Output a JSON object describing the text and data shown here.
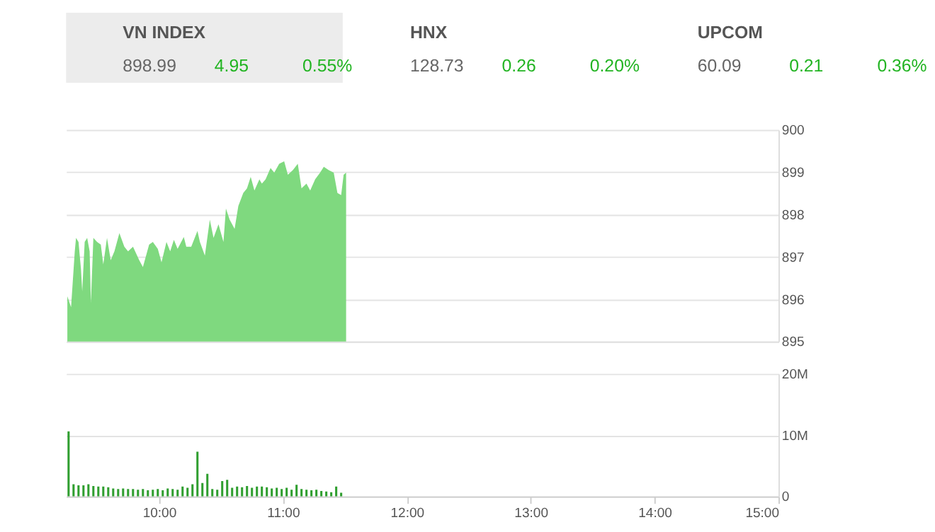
{
  "chart_data": [
    {
      "type": "other",
      "title": "VN INDEX",
      "annotations": [
        "898.99",
        "4.95",
        "0.55%"
      ]
    },
    {
      "type": "other",
      "title": "HNX",
      "annotations": [
        "128.73",
        "0.26",
        "0.20%"
      ]
    },
    {
      "type": "other",
      "title": "UPCOM",
      "annotations": [
        "60.09",
        "0.21",
        "0.36%"
      ]
    },
    {
      "type": "area",
      "x": [
        9.26,
        9.29,
        9.32,
        9.33,
        9.35,
        9.37,
        9.38,
        9.4,
        9.42,
        9.44,
        9.45,
        9.47,
        9.5,
        9.53,
        9.55,
        9.58,
        9.61,
        9.64,
        9.68,
        9.72,
        9.75,
        9.79,
        9.84,
        9.87,
        9.92,
        9.95,
        9.99,
        10.02,
        10.06,
        10.09,
        10.12,
        10.15,
        10.2,
        10.22,
        10.26,
        10.31,
        10.33,
        10.37,
        10.41,
        10.44,
        10.48,
        10.52,
        10.54,
        10.57,
        10.61,
        10.64,
        10.68,
        10.71,
        10.74,
        10.77,
        10.81,
        10.83,
        10.86,
        10.9,
        10.93,
        10.97,
        11.01,
        11.04,
        11.08,
        11.12,
        11.15,
        11.19,
        11.22,
        11.26,
        11.3,
        11.33,
        11.37,
        11.41,
        11.44,
        11.47,
        11.49,
        11.51
      ],
      "series": [
        {
          "color": "#7fd97f",
          "values": [
            896.07,
            895.81,
            897.13,
            897.45,
            897.35,
            896.71,
            896.18,
            897.35,
            897.45,
            897.13,
            895.91,
            897.45,
            897.35,
            897.29,
            896.82,
            897.45,
            896.92,
            897.13,
            897.56,
            897.24,
            897.13,
            897.24,
            896.92,
            896.76,
            897.29,
            897.35,
            897.19,
            896.87,
            897.35,
            897.13,
            897.4,
            897.19,
            897.47,
            897.24,
            897.24,
            897.61,
            897.35,
            897.03,
            897.88,
            897.45,
            897.77,
            897.35,
            898.14,
            897.88,
            897.66,
            898.2,
            898.51,
            898.62,
            898.89,
            898.57,
            898.83,
            898.73,
            898.83,
            899.1,
            898.99,
            899.2,
            899.26,
            898.94,
            899.05,
            899.2,
            898.62,
            898.73,
            898.57,
            898.83,
            898.99,
            899.13,
            899.05,
            898.99,
            898.51,
            898.46,
            898.94,
            898.99
          ]
        }
      ],
      "xlim": [
        9.25,
        15
      ],
      "ylim": [
        895,
        900
      ],
      "yticks": [
        895,
        896,
        897,
        898,
        899,
        900
      ],
      "grid": "y",
      "tick_labels": "y"
    },
    {
      "type": "bar",
      "x": [
        9.27,
        9.31,
        9.35,
        9.39,
        9.43,
        9.47,
        9.51,
        9.55,
        9.59,
        9.63,
        9.67,
        9.71,
        9.75,
        9.79,
        9.83,
        9.87,
        9.91,
        9.95,
        9.99,
        10.03,
        10.07,
        10.11,
        10.15,
        10.19,
        10.23,
        10.27,
        10.31,
        10.35,
        10.39,
        10.43,
        10.47,
        10.51,
        10.55,
        10.59,
        10.63,
        10.67,
        10.71,
        10.75,
        10.79,
        10.83,
        10.87,
        10.91,
        10.95,
        10.99,
        11.03,
        11.07,
        11.11,
        11.15,
        11.19,
        11.23,
        11.27,
        11.31,
        11.35,
        11.39,
        11.43,
        11.47
      ],
      "series": [
        {
          "color": "#2f9e2f",
          "values": [
            10.6,
            2.0,
            1.8,
            1.8,
            2.0,
            1.7,
            1.6,
            1.6,
            1.5,
            1.3,
            1.2,
            1.3,
            1.2,
            1.2,
            1.1,
            1.2,
            1.0,
            1.1,
            1.2,
            1.0,
            1.3,
            1.2,
            1.1,
            1.6,
            1.4,
            2.0,
            7.3,
            2.2,
            3.7,
            1.2,
            1.1,
            2.5,
            2.7,
            1.4,
            1.6,
            1.5,
            1.7,
            1.4,
            1.6,
            1.6,
            1.5,
            1.3,
            1.4,
            1.2,
            1.4,
            1.1,
            1.9,
            1.2,
            1.1,
            1.0,
            1.1,
            0.9,
            0.8,
            0.7,
            1.6,
            0.6
          ]
        }
      ],
      "xlim": [
        9.25,
        15
      ],
      "xticks": [
        {
          "value": 10,
          "label": "10:00"
        },
        {
          "value": 11,
          "label": "11:00"
        },
        {
          "value": 12,
          "label": "12:00"
        },
        {
          "value": 13,
          "label": "13:00"
        },
        {
          "value": 14,
          "label": "14:00"
        },
        {
          "value": 15,
          "label": "15:00"
        }
      ],
      "ylim": [
        0,
        20
      ],
      "yticks": [
        0,
        {
          "value": 10,
          "label": "10M"
        },
        {
          "value": 20,
          "label": "20M"
        }
      ],
      "grid": "y"
    }
  ]
}
